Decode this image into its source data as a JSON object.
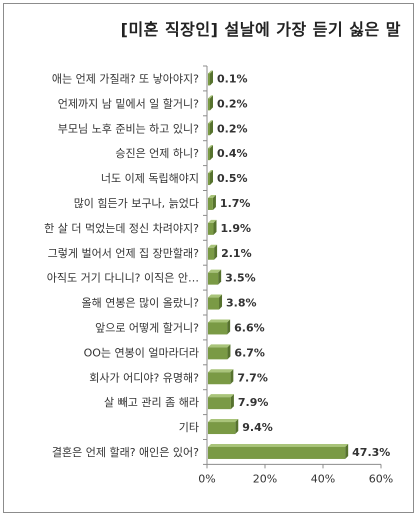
{
  "chart_data": {
    "type": "bar",
    "orientation": "horizontal",
    "title": "[미혼 직장인] 설날에 가장 듣기 싫은 말",
    "categories": [
      "애는 언제 가질래? 또 낳아야지?",
      "언제까지 남 밑에서 일 할거니?",
      "부모님 노후 준비는 하고 있니?",
      "승진은 언제 하니?",
      "너도 이제 독립해야지",
      "많이 힘든가 보구나, 늙었다",
      "한 살 더 먹었는데 정신 차려야지?",
      "그렇게 벌어서 언제 집 장만할래?",
      "아직도 거기 다니니? 이직은 안…",
      "올해 연봉은 많이 올랐니?",
      "앞으로 어떻게 할거니?",
      "OO는 연봉이 얼마라더라",
      "회사가 어디야? 유명해?",
      "살 빼고 관리 좀 해라",
      "기타",
      "결혼은 언제 할래? 애인은 있어?"
    ],
    "values": [
      0.1,
      0.2,
      0.2,
      0.4,
      0.5,
      1.7,
      1.9,
      2.1,
      3.5,
      3.8,
      6.6,
      6.7,
      7.7,
      7.9,
      9.4,
      47.3
    ],
    "data_labels": [
      "0.1%",
      "0.2%",
      "0.2%",
      "0.4%",
      "0.5%",
      "1.7%",
      "1.9%",
      "2.1%",
      "3.5%",
      "3.8%",
      "6.6%",
      "6.7%",
      "7.7%",
      "7.9%",
      "9.4%",
      "47.3%"
    ],
    "x_ticks": [
      "0%",
      "20%",
      "40%",
      "60%"
    ],
    "xlim": [
      0,
      60
    ],
    "grid": false,
    "colors": {
      "bar": "#7a9a45",
      "bar_dark": "#56722e",
      "bar_light": "#a9c47a",
      "axis": "#8c8c8c"
    }
  }
}
